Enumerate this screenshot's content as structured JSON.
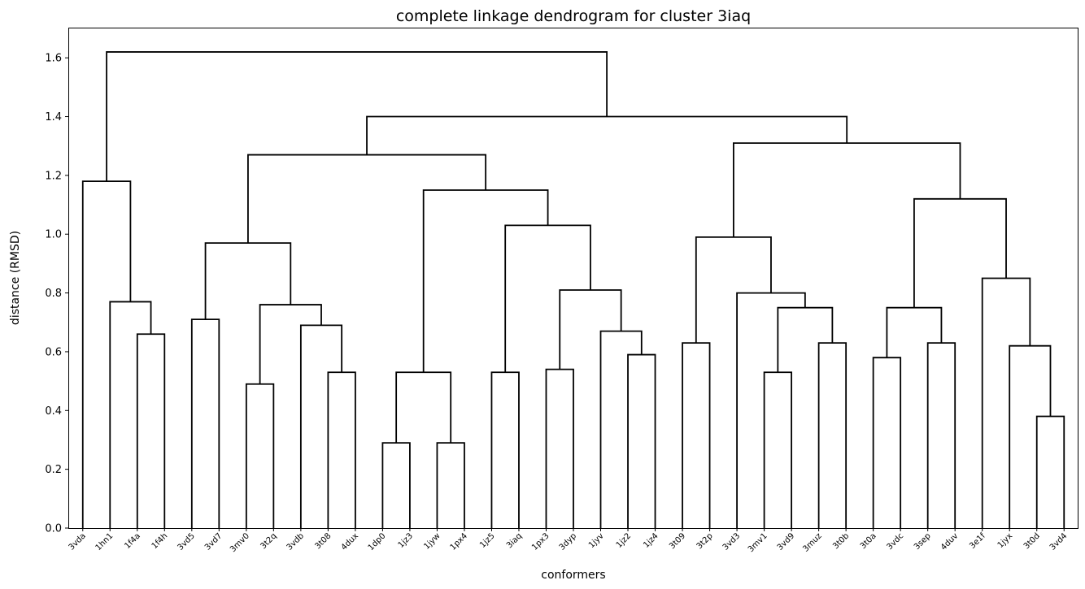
{
  "chart_data": {
    "type": "dendrogram",
    "title": "complete linkage dendrogram for cluster 3iaq",
    "xlabel": "conformers",
    "ylabel": "distance (RMSD)",
    "ylim": [
      0,
      1.7
    ],
    "yticks": [
      0.0,
      0.2,
      0.4,
      0.6,
      0.8,
      1.0,
      1.2,
      1.4,
      1.6
    ],
    "grid": false,
    "leaves": [
      "3vda",
      "1hn1",
      "1f4a",
      "1f4h",
      "3vd5",
      "3vd7",
      "3mv0",
      "3t2q",
      "3vdb",
      "3t08",
      "4dux",
      "1dp0",
      "1jz3",
      "1jyw",
      "1px4",
      "1jz5",
      "3iaq",
      "1px3",
      "3dyp",
      "1jyv",
      "1jz2",
      "1jz4",
      "3t09",
      "3t2p",
      "3vd3",
      "3mv1",
      "3vd9",
      "3muz",
      "3t0b",
      "3t0a",
      "3vdc",
      "3sep",
      "4duv",
      "3e1f",
      "1jyx",
      "3t0d",
      "3vd4"
    ],
    "merges": [
      {
        "left": "L11",
        "right": "L12",
        "height": 0.29
      },
      {
        "left": "L13",
        "right": "L14",
        "height": 0.29
      },
      {
        "left": "L35",
        "right": "L36",
        "height": 0.38
      },
      {
        "left": "L6",
        "right": "L7",
        "height": 0.49
      },
      {
        "left": "M0",
        "right": "M1",
        "height": 0.53
      },
      {
        "left": "L9",
        "right": "L10",
        "height": 0.53
      },
      {
        "left": "L15",
        "right": "L16",
        "height": 0.53
      },
      {
        "left": "L25",
        "right": "L26",
        "height": 0.53
      },
      {
        "left": "L17",
        "right": "L18",
        "height": 0.54
      },
      {
        "left": "L29",
        "right": "L30",
        "height": 0.58
      },
      {
        "left": "L20",
        "right": "L21",
        "height": 0.59
      },
      {
        "left": "L34",
        "right": "M2",
        "height": 0.62
      },
      {
        "left": "L22",
        "right": "L23",
        "height": 0.63
      },
      {
        "left": "L27",
        "right": "L28",
        "height": 0.63
      },
      {
        "left": "L31",
        "right": "L32",
        "height": 0.63
      },
      {
        "left": "L2",
        "right": "L3",
        "height": 0.66
      },
      {
        "left": "L19",
        "right": "M10",
        "height": 0.67
      },
      {
        "left": "L8",
        "right": "M5",
        "height": 0.69
      },
      {
        "left": "L4",
        "right": "L5",
        "height": 0.71
      },
      {
        "left": "M7",
        "right": "M13",
        "height": 0.75
      },
      {
        "left": "M9",
        "right": "M14",
        "height": 0.75
      },
      {
        "left": "M3",
        "right": "M17",
        "height": 0.76
      },
      {
        "left": "L1",
        "right": "M15",
        "height": 0.77
      },
      {
        "left": "L24",
        "right": "M19",
        "height": 0.8
      },
      {
        "left": "M8",
        "right": "M16",
        "height": 0.81
      },
      {
        "left": "L33",
        "right": "M11",
        "height": 0.85
      },
      {
        "left": "M18",
        "right": "M21",
        "height": 0.97
      },
      {
        "left": "M12",
        "right": "M23",
        "height": 0.99
      },
      {
        "left": "M6",
        "right": "M24",
        "height": 1.03
      },
      {
        "left": "M20",
        "right": "M25",
        "height": 1.12
      },
      {
        "left": "M4",
        "right": "M28",
        "height": 1.15
      },
      {
        "left": "L0",
        "right": "M22",
        "height": 1.18
      },
      {
        "left": "M26",
        "right": "M30",
        "height": 1.27
      },
      {
        "left": "M27",
        "right": "M29",
        "height": 1.31
      },
      {
        "left": "M32",
        "right": "M33",
        "height": 1.4
      },
      {
        "left": "M31",
        "right": "M34",
        "height": 1.62
      }
    ]
  }
}
